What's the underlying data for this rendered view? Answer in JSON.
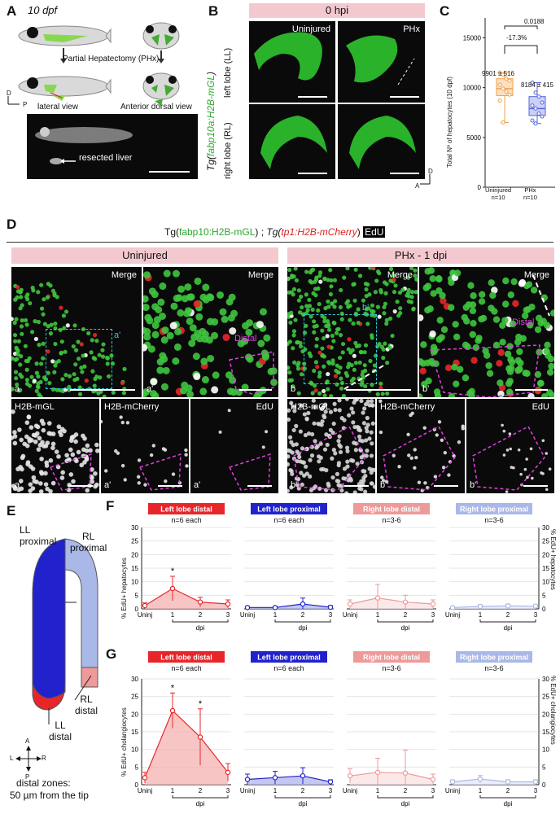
{
  "panel_a": {
    "label": "A",
    "age": "10 dpf",
    "procedure": "Partial Hepatectomy (PHx)",
    "lateral": "lateral view",
    "dorsal": "Anterior dorsal view",
    "resected": "resected liver",
    "axis_d": "D",
    "axis_p": "P"
  },
  "panel_b": {
    "label": "B",
    "header": "0 hpi",
    "ylabel_prefix": "Tg(",
    "ylabel_green": "fabp10a:H2B-mGL",
    "ylabel_suffix": ")",
    "row1": "left lobe (LL)",
    "row2": "right lobe (RL)",
    "col1": "Uninjured",
    "col2": "PHx",
    "axis_d": "D",
    "axis_a": "A"
  },
  "panel_c": {
    "label": "C",
    "ylabel": "Total Nº of hepatocytes (10 dpf)",
    "pvalue": "0.0188",
    "change": "-17.3%",
    "cat1_stat": "9901 ± 516",
    "cat2_stat": "8184 ± 415",
    "cat1": "Uninjured",
    "cat1_n": "n=10",
    "cat2": "PHx",
    "cat2_n": "n=10",
    "yticks": [
      "0",
      "5000",
      "10000",
      "15000"
    ]
  },
  "panel_d": {
    "label": "D",
    "title_pre": "Tg(",
    "title_green": "fabp10:H2B-mGL",
    "title_mid": ") ; ",
    "title_tg2": "Tg(",
    "title_red": "tp1:H2B-mCherry",
    "title_end": ")",
    "title_edu": "EdU",
    "left_header": "Uninjured",
    "right_header": "PHx - 1 dpi",
    "merge": "Merge",
    "distal": "Distal",
    "ch1": "H2B-mGL",
    "ch2": "H2B-mCherry",
    "ch3": "EdU",
    "a": "a",
    "a_prime": "a'",
    "b": "b",
    "b_prime": "b'",
    "b_dprime": "b''"
  },
  "panel_e": {
    "label": "E",
    "ll_proximal": "LL\nproximal",
    "rl_proximal": "RL\nproximal",
    "rl_distal": "RL\ndistal",
    "ll_distal": "LL\ndistal",
    "note1": "distal zones:",
    "note2": "50 µm from the tip",
    "axis": [
      "A",
      "L",
      "R",
      "P"
    ]
  },
  "panel_f": {
    "label": "F",
    "ylabel": "% EdU+ hepatocytes",
    "titles": [
      "Left lobe distal",
      "Left lobe proximal",
      "Right lobe distal",
      "Right lobe proximal"
    ],
    "ns": [
      "n=6 each",
      "n=6 each",
      "n=3-6",
      "n=3-6"
    ],
    "xticks": [
      "Uninj",
      "1",
      "2",
      "3"
    ],
    "xlabel": "dpi",
    "star": "*"
  },
  "panel_g": {
    "label": "G",
    "ylabel": "% EdU+ cholangiocytes",
    "titles": [
      "Left lobe distal",
      "Left lobe proximal",
      "Right lobe distal",
      "Right lobe proximal"
    ],
    "ns": [
      "n=6 each",
      "n=6 each",
      "n=3-6",
      "n=3-6"
    ],
    "xticks": [
      "Uninj",
      "1",
      "2",
      "3"
    ],
    "xlabel": "dpi",
    "star": "*"
  },
  "colors": {
    "ll_distal": "#e8262a",
    "ll_proximal": "#2222cc",
    "rl_distal": "#ee9a9a",
    "rl_proximal": "#aab8e8",
    "uninjured_box": "#f0a14b",
    "phx_box": "#5566dd"
  },
  "chart_data": [
    {
      "type": "box",
      "panel": "C",
      "categories": [
        "Uninjured",
        "PHx"
      ],
      "ylabel": "Total Nº of hepatocytes (10 dpf)",
      "ylim": [
        0,
        17000
      ],
      "series": [
        {
          "name": "Uninjured",
          "median": 9900,
          "q1": 9200,
          "q3": 10900,
          "min": 6500,
          "max": 11500,
          "points": [
            11500,
            11300,
            10900,
            10700,
            10300,
            9900,
            9600,
            9300,
            8700,
            6500
          ]
        },
        {
          "name": "PHx",
          "median": 7900,
          "q1": 7200,
          "q3": 9100,
          "min": 6400,
          "max": 10500,
          "points": [
            10500,
            9500,
            9100,
            8500,
            8200,
            7900,
            7400,
            7100,
            6700,
            6400
          ]
        }
      ],
      "annotations": [
        "0.0188",
        "-17.3%",
        "9901 ± 516",
        "8184 ± 415"
      ]
    },
    {
      "type": "area",
      "panel": "F",
      "ylabel": "% EdU+ hepatocytes",
      "categories": [
        "Uninj",
        "1",
        "2",
        "3"
      ],
      "ylim": [
        0,
        30
      ],
      "series": [
        {
          "name": "Left lobe distal",
          "values": [
            1.2,
            7.5,
            2.5,
            1.8
          ],
          "errors": [
            1.0,
            4.5,
            1.8,
            1.5
          ]
        },
        {
          "name": "Left lobe proximal",
          "values": [
            0.5,
            0.5,
            1.8,
            0.6
          ],
          "errors": [
            0.4,
            0.4,
            2.2,
            0.6
          ]
        },
        {
          "name": "Right lobe distal",
          "values": [
            1.8,
            4.0,
            2.5,
            1.8
          ],
          "errors": [
            1.5,
            5.0,
            2.5,
            1.5
          ]
        },
        {
          "name": "Right lobe proximal",
          "values": [
            0.5,
            0.9,
            1.1,
            1.0
          ],
          "errors": [
            0.3,
            0.6,
            0.7,
            0.6
          ]
        }
      ]
    },
    {
      "type": "area",
      "panel": "G",
      "ylabel": "% EdU+ cholangiocytes",
      "categories": [
        "Uninj",
        "1",
        "2",
        "3"
      ],
      "ylim": [
        0,
        30
      ],
      "series": [
        {
          "name": "Left lobe distal",
          "values": [
            2.0,
            21.0,
            13.5,
            3.5
          ],
          "errors": [
            1.5,
            5.0,
            8.0,
            2.5
          ]
        },
        {
          "name": "Left lobe proximal",
          "values": [
            1.5,
            2.0,
            2.5,
            0.8
          ],
          "errors": [
            1.5,
            1.8,
            2.3,
            0.6
          ]
        },
        {
          "name": "Right lobe distal",
          "values": [
            2.5,
            3.5,
            3.3,
            1.5
          ],
          "errors": [
            2.0,
            4.0,
            6.5,
            1.5
          ]
        },
        {
          "name": "Right lobe proximal",
          "values": [
            0.8,
            1.6,
            0.8,
            0.8
          ],
          "errors": [
            0.6,
            1.0,
            0.6,
            0.6
          ]
        }
      ]
    }
  ]
}
